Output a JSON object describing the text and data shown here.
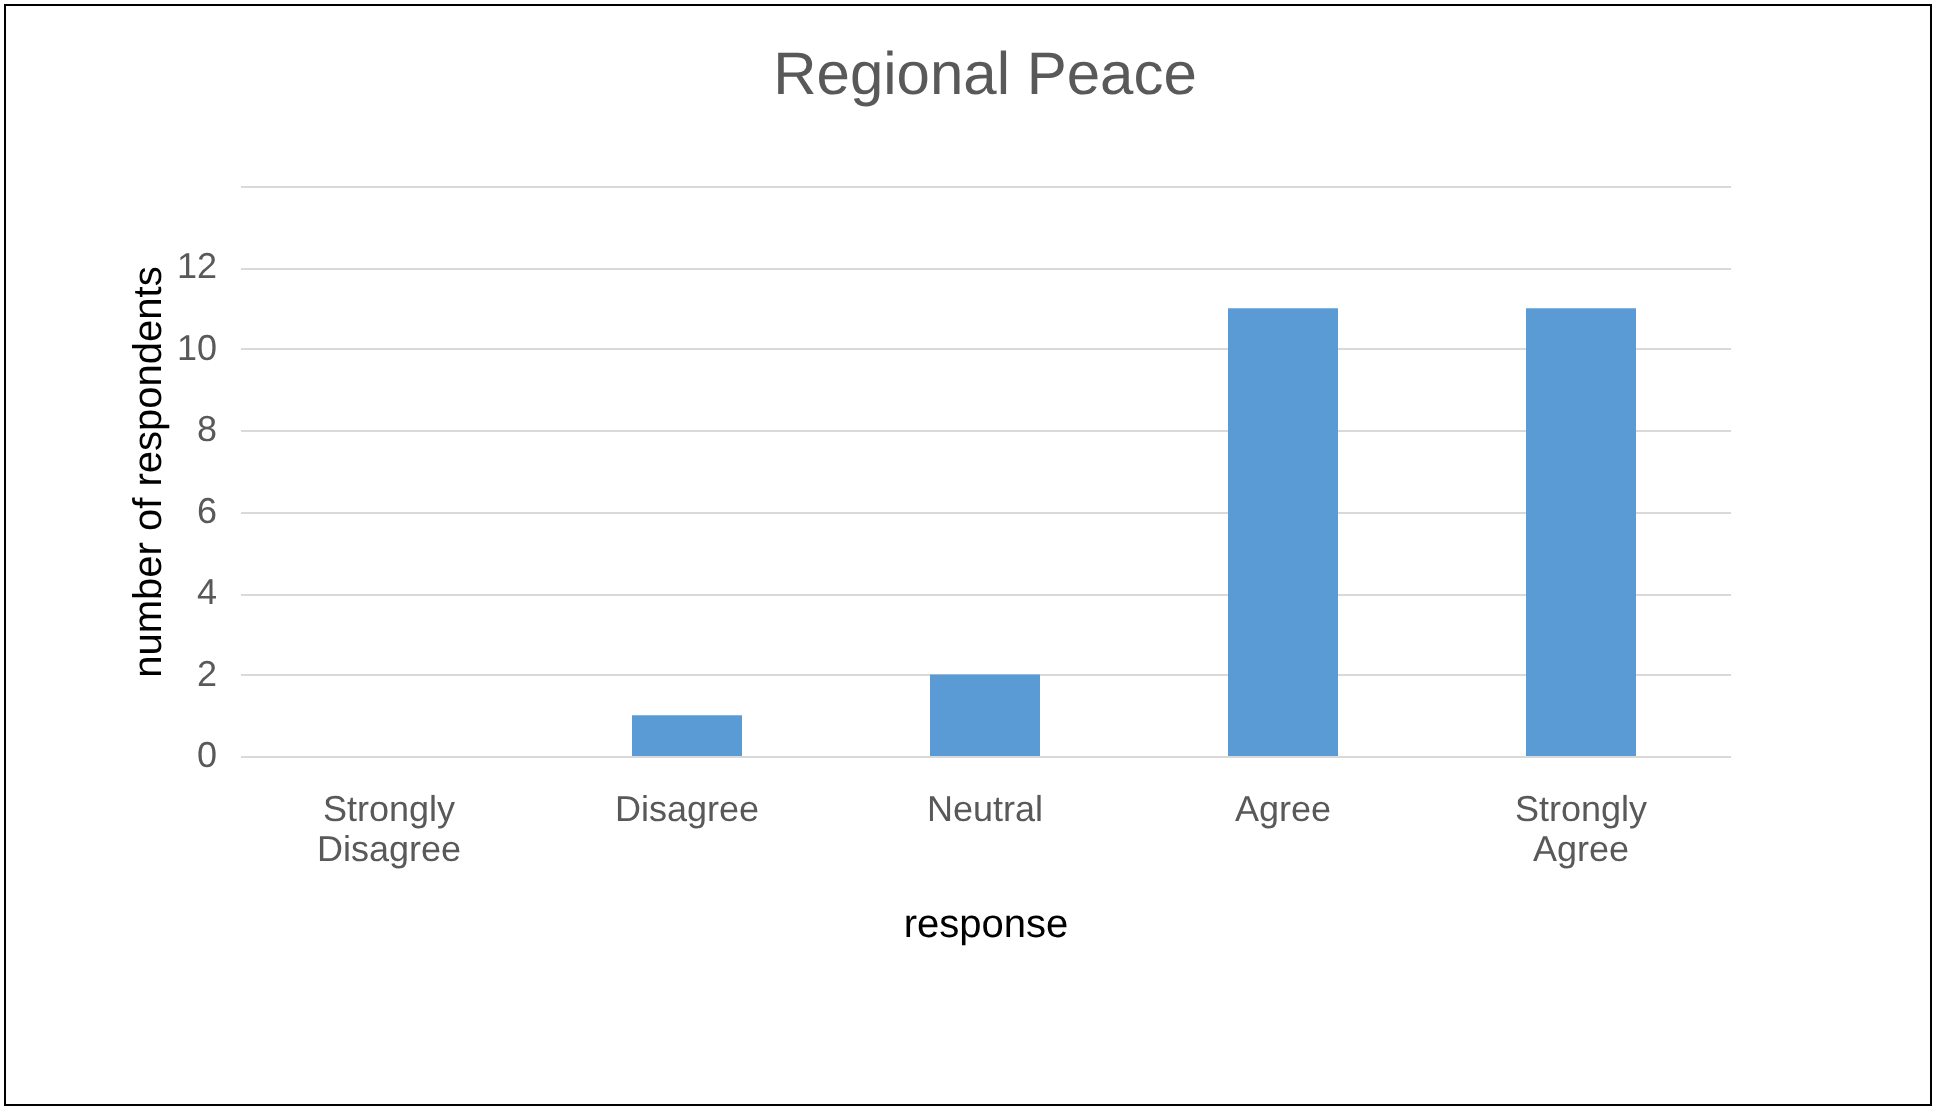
{
  "chart_data": {
    "type": "bar",
    "title": "Regional Peace",
    "xlabel": "response",
    "ylabel": "number of respondents",
    "categories": [
      "Strongly Disagree",
      "Disagree",
      "Neutral",
      "Agree",
      "Strongly Agree"
    ],
    "values": [
      0,
      1,
      2,
      11,
      11
    ],
    "color": "#5b9bd5",
    "ylim": [
      0,
      14
    ],
    "yticks": [
      0,
      2,
      4,
      6,
      8,
      10,
      12,
      {
        "value": 14,
        "label": null
      }
    ],
    "grid": "y"
  }
}
